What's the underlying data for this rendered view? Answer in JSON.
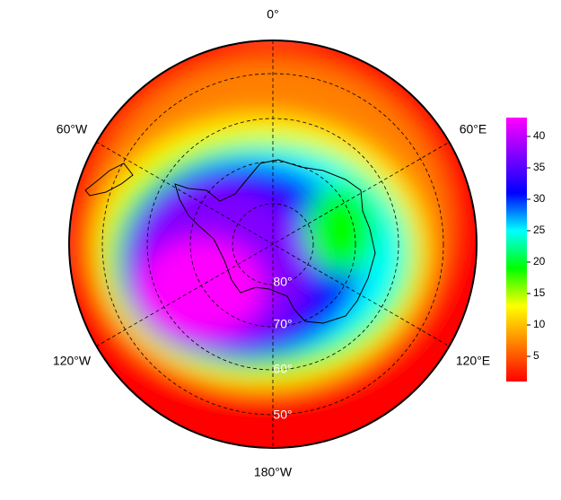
{
  "map": {
    "longitude_labels": [
      "0°",
      "60°E",
      "120°E",
      "180°W",
      "120°W",
      "60°W"
    ],
    "latitude_labels": [
      "80°",
      "70°",
      "60°",
      "50°"
    ],
    "colorbar": {
      "lim": [
        1,
        43
      ],
      "ticks": [
        5,
        10,
        15,
        20,
        25,
        30,
        35,
        40
      ],
      "colors": [
        "#ff0000",
        "#ff8000",
        "#ffff00",
        "#00ff00",
        "#00ffff",
        "#0000ff",
        "#8000ff",
        "#ff00ff"
      ]
    }
  }
}
